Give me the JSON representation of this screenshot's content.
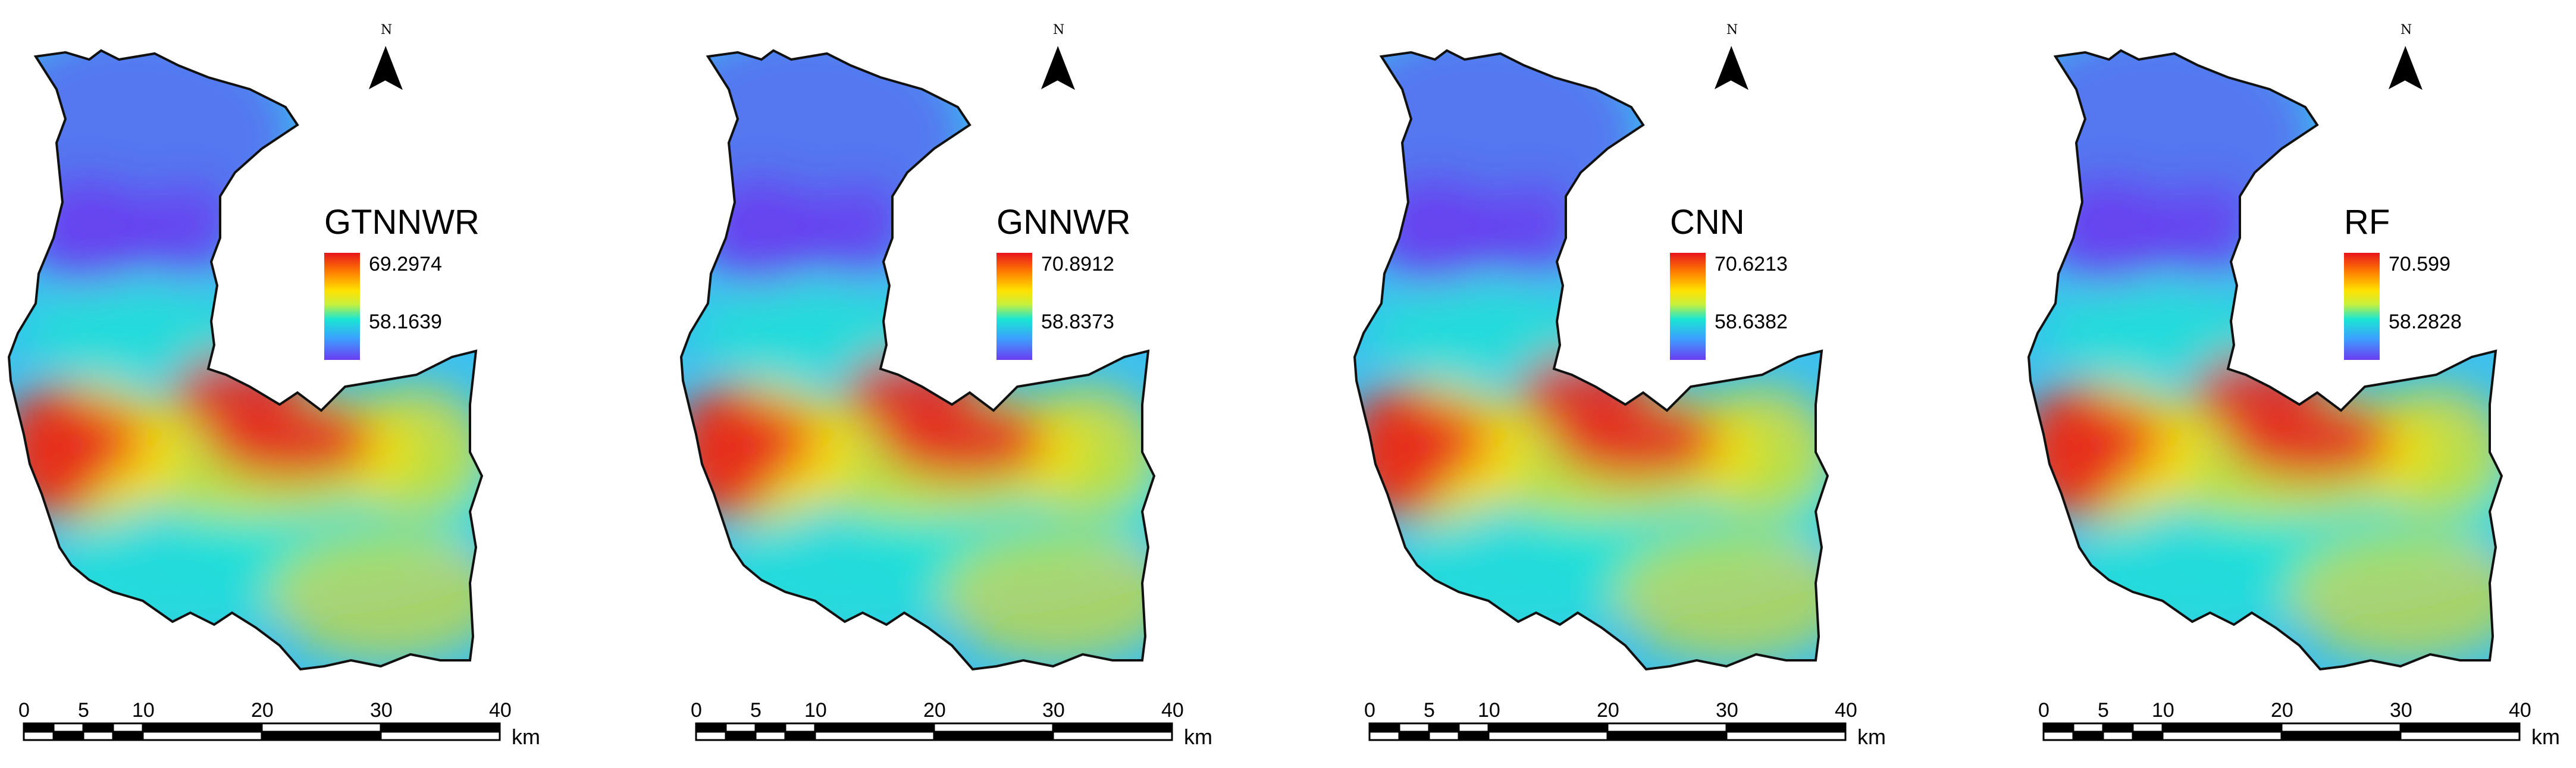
{
  "panels": [
    {
      "title": "GTNNWR",
      "max": "69.2974",
      "min": "58.1639"
    },
    {
      "title": "GNNWR",
      "max": "70.8912",
      "min": "58.8373"
    },
    {
      "title": "CNN",
      "max": "70.6213",
      "min": "58.6382"
    },
    {
      "title": "RF",
      "max": "70.599",
      "min": "58.2828"
    }
  ],
  "north_label": "N",
  "scale_ticks": [
    "0",
    "5",
    "10",
    "20",
    "30",
    "40"
  ],
  "scale_unit": "km",
  "colors": {
    "high": "#e8141c",
    "mid_high": "#ffe100",
    "mid": "#19e6d2",
    "low": "#6a3cf0"
  }
}
